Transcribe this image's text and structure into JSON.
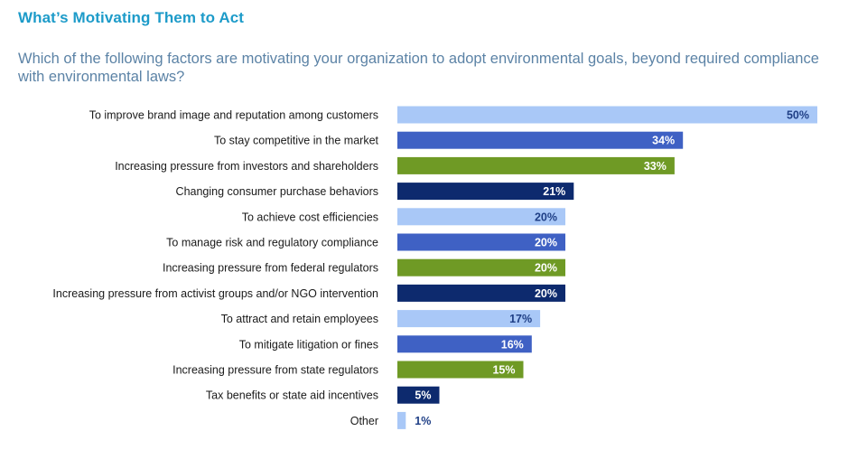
{
  "heading": "What’s Motivating Them to Act",
  "question": "Which of the following factors are motivating your organization to adopt environmental goals, beyond required compliance with environmental laws?",
  "colors": {
    "light": "#a9c8f7",
    "medium": "#3f61c4",
    "green": "#6f9a25",
    "navy": "#0d2a6e",
    "label_on_light": "#1f3f86",
    "label_on_dark": "#ffffff"
  },
  "chart_data": {
    "type": "bar",
    "orientation": "horizontal",
    "title": "What’s Motivating Them to Act",
    "xlabel": "",
    "ylabel": "",
    "xlim": [
      0,
      50
    ],
    "unit": "%",
    "grid": false,
    "legend": false,
    "categories": [
      "To improve brand image and reputation among customers",
      "To stay competitive in the market",
      "Increasing pressure from investors and shareholders",
      "Changing consumer purchase behaviors",
      "To achieve cost efficiencies",
      "To manage risk and regulatory compliance",
      "Increasing pressure from federal regulators",
      "Increasing pressure from activist groups and/or NGO intervention",
      "To attract and retain employees",
      "To mitigate litigation or fines",
      "Increasing pressure from state regulators",
      "Tax benefits or state aid incentives",
      "Other"
    ],
    "values": [
      50,
      34,
      33,
      21,
      20,
      20,
      20,
      20,
      17,
      16,
      15,
      5,
      1
    ],
    "value_labels": [
      "50%",
      "34%",
      "33%",
      "21%",
      "20%",
      "20%",
      "20%",
      "20%",
      "17%",
      "16%",
      "15%",
      "5%",
      "1%"
    ],
    "bar_colors": [
      "light",
      "medium",
      "green",
      "navy",
      "light",
      "medium",
      "green",
      "navy",
      "light",
      "medium",
      "green",
      "navy",
      "light"
    ]
  }
}
